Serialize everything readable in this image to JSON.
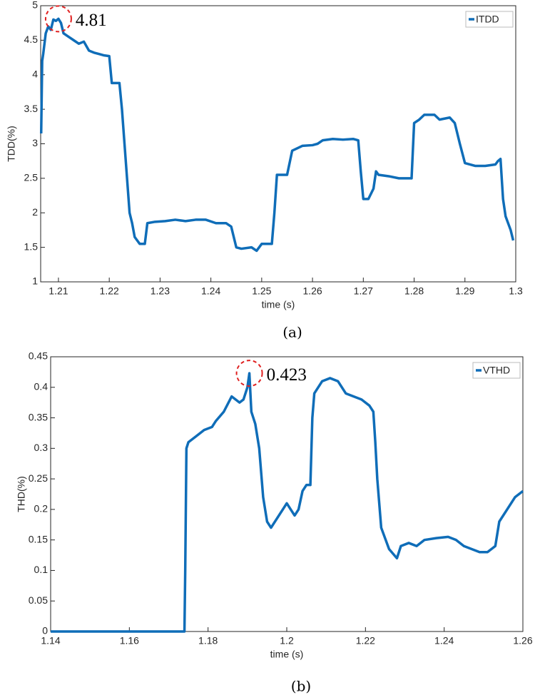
{
  "chart_data": [
    {
      "type": "line",
      "caption": "(a)",
      "xlabel": "time (s)",
      "ylabel": "TDD(%)",
      "xlim": [
        1.2065,
        1.3
      ],
      "xticks": [
        1.21,
        1.22,
        1.23,
        1.24,
        1.25,
        1.26,
        1.27,
        1.28,
        1.29,
        1.3
      ],
      "ylim": [
        1,
        5
      ],
      "yticks": [
        1,
        1.5,
        2,
        2.5,
        3,
        3.5,
        4,
        4.5,
        5
      ],
      "legend": "upper right",
      "annotation": {
        "text": "4.81",
        "x": 1.21,
        "y": 4.81
      },
      "series": [
        {
          "name": "ITDD",
          "color": "#0f6db8",
          "x": [
            1.2066,
            1.2068,
            1.207,
            1.2075,
            1.208,
            1.2085,
            1.209,
            1.2095,
            1.21,
            1.2105,
            1.211,
            1.212,
            1.213,
            1.214,
            1.215,
            1.216,
            1.217,
            1.218,
            1.219,
            1.22,
            1.2205,
            1.222,
            1.2225,
            1.223,
            1.2235,
            1.224,
            1.2245,
            1.225,
            1.226,
            1.227,
            1.2275,
            1.229,
            1.231,
            1.233,
            1.235,
            1.237,
            1.239,
            1.241,
            1.243,
            1.244,
            1.245,
            1.246,
            1.248,
            1.249,
            1.25,
            1.252,
            1.2525,
            1.253,
            1.255,
            1.256,
            1.258,
            1.26,
            1.261,
            1.262,
            1.264,
            1.266,
            1.268,
            1.269,
            1.2695,
            1.27,
            1.271,
            1.272,
            1.2725,
            1.273,
            1.275,
            1.277,
            1.279,
            1.2795,
            1.28,
            1.281,
            1.282,
            1.284,
            1.285,
            1.287,
            1.288,
            1.289,
            1.29,
            1.292,
            1.294,
            1.296,
            1.2965,
            1.297,
            1.2975,
            1.298,
            1.299,
            1.2995
          ],
          "values": [
            3.15,
            4.2,
            4.3,
            4.6,
            4.7,
            4.65,
            4.8,
            4.78,
            4.81,
            4.75,
            4.6,
            4.55,
            4.5,
            4.45,
            4.48,
            4.35,
            4.32,
            4.3,
            4.28,
            4.27,
            3.88,
            3.88,
            3.5,
            3.0,
            2.5,
            2.0,
            1.85,
            1.65,
            1.55,
            1.55,
            1.85,
            1.87,
            1.88,
            1.9,
            1.88,
            1.9,
            1.9,
            1.85,
            1.85,
            1.8,
            1.5,
            1.48,
            1.5,
            1.45,
            1.55,
            1.55,
            2.0,
            2.55,
            2.55,
            2.9,
            2.97,
            2.98,
            3.0,
            3.05,
            3.07,
            3.06,
            3.07,
            3.05,
            2.6,
            2.2,
            2.2,
            2.35,
            2.6,
            2.55,
            2.53,
            2.5,
            2.5,
            2.5,
            3.3,
            3.35,
            3.42,
            3.42,
            3.35,
            3.38,
            3.3,
            3.0,
            2.72,
            2.68,
            2.68,
            2.7,
            2.75,
            2.78,
            2.2,
            1.95,
            1.75,
            1.6
          ]
        }
      ]
    },
    {
      "type": "line",
      "caption": "(b)",
      "xlabel": "time (s)",
      "ylabel": "THD(%)",
      "xlim": [
        1.14,
        1.26
      ],
      "xticks": [
        1.14,
        1.16,
        1.18,
        1.2,
        1.22,
        1.24,
        1.26
      ],
      "ylim": [
        0,
        0.45
      ],
      "yticks": [
        0,
        0.05,
        0.1,
        0.15,
        0.2,
        0.25,
        0.3,
        0.35,
        0.4,
        0.45
      ],
      "legend": "upper right",
      "annotation": {
        "text": "0.423",
        "x": 1.1905,
        "y": 0.423
      },
      "series": [
        {
          "name": "VTHD",
          "color": "#0f6db8",
          "x": [
            1.14,
            1.174,
            1.1742,
            1.1745,
            1.175,
            1.177,
            1.179,
            1.181,
            1.182,
            1.184,
            1.186,
            1.187,
            1.188,
            1.189,
            1.19,
            1.1905,
            1.191,
            1.192,
            1.193,
            1.194,
            1.195,
            1.196,
            1.198,
            1.199,
            1.2,
            1.201,
            1.202,
            1.203,
            1.204,
            1.205,
            1.206,
            1.2065,
            1.207,
            1.209,
            1.211,
            1.213,
            1.215,
            1.217,
            1.219,
            1.221,
            1.222,
            1.2225,
            1.223,
            1.224,
            1.226,
            1.228,
            1.229,
            1.231,
            1.233,
            1.235,
            1.238,
            1.241,
            1.243,
            1.245,
            1.247,
            1.249,
            1.251,
            1.253,
            1.254,
            1.256,
            1.258,
            1.26
          ],
          "values": [
            0,
            0,
            0.1,
            0.3,
            0.31,
            0.32,
            0.33,
            0.335,
            0.345,
            0.36,
            0.385,
            0.38,
            0.375,
            0.38,
            0.4,
            0.423,
            0.36,
            0.34,
            0.3,
            0.22,
            0.18,
            0.17,
            0.19,
            0.2,
            0.21,
            0.2,
            0.19,
            0.2,
            0.23,
            0.24,
            0.24,
            0.35,
            0.39,
            0.41,
            0.415,
            0.41,
            0.39,
            0.385,
            0.38,
            0.37,
            0.36,
            0.31,
            0.25,
            0.17,
            0.135,
            0.12,
            0.14,
            0.145,
            0.14,
            0.15,
            0.153,
            0.155,
            0.15,
            0.14,
            0.135,
            0.13,
            0.13,
            0.14,
            0.18,
            0.2,
            0.22,
            0.23
          ]
        }
      ]
    }
  ]
}
